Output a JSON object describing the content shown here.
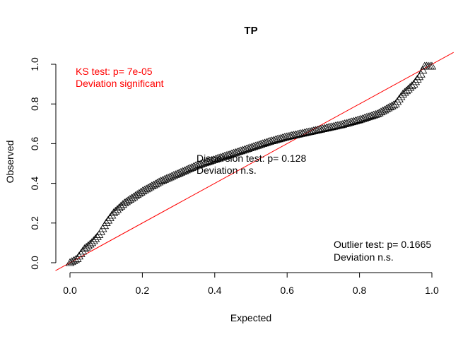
{
  "chart_data": {
    "type": "scatter",
    "title": "TP",
    "xlabel": "Expected",
    "ylabel": "Observed",
    "xlim": [
      0,
      1
    ],
    "ylim": [
      0,
      1
    ],
    "x_ticks": [
      "0.0",
      "0.2",
      "0.4",
      "0.6",
      "0.8",
      "1.0"
    ],
    "y_ticks": [
      "0.0",
      "0.2",
      "0.4",
      "0.6",
      "0.8",
      "1.0"
    ],
    "marker": "open-triangle",
    "reference_line": {
      "slope": 1,
      "intercept": 0,
      "color": "#ff0000"
    },
    "curve": {
      "x": [
        0.0,
        0.02,
        0.04,
        0.06,
        0.08,
        0.1,
        0.12,
        0.15,
        0.2,
        0.25,
        0.3,
        0.35,
        0.4,
        0.45,
        0.5,
        0.55,
        0.6,
        0.65,
        0.7,
        0.75,
        0.8,
        0.85,
        0.9,
        0.92,
        0.95,
        0.97,
        0.98,
        1.0
      ],
      "y": [
        0.0,
        0.02,
        0.07,
        0.1,
        0.14,
        0.2,
        0.25,
        0.3,
        0.36,
        0.41,
        0.45,
        0.49,
        0.52,
        0.55,
        0.58,
        0.61,
        0.635,
        0.655,
        0.675,
        0.695,
        0.72,
        0.75,
        0.8,
        0.85,
        0.9,
        0.95,
        0.99,
        0.99
      ]
    },
    "n_points": 200
  },
  "annotations": {
    "ks_line1": "KS test: p= 7e-05",
    "ks_line2": "Deviation  significant",
    "ks_color": "#ff0000",
    "dispersion_line1": "Dispersion test: p= 0.128",
    "dispersion_line2": "Deviation  n.s.",
    "outlier_line1": "Outlier test: p= 0.1665",
    "outlier_line2": "Deviation  n.s."
  }
}
